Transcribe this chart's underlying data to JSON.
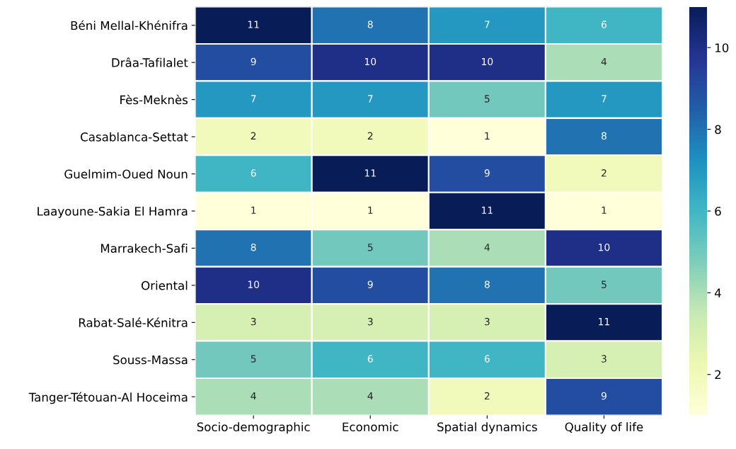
{
  "chart_data": {
    "type": "heatmap",
    "categories": [
      "Socio-demographic",
      "Economic",
      "Spatial dynamics",
      "Quality of life"
    ],
    "y_categories": [
      "Béni Mellal-Khénifra",
      "Drâa-Tafilalet",
      "Fès-Meknès",
      "Casablanca-Settat",
      "Guelmim-Oued Noun",
      "Laayoune-Sakia El Hamra",
      "Marrakech-Safi",
      "Oriental",
      "Rabat-Salé-Kénitra",
      "Souss-Massa",
      "Tanger-Tétouan-Al Hoceima"
    ],
    "cells": [
      [
        11,
        8,
        7,
        6
      ],
      [
        9,
        10,
        10,
        4
      ],
      [
        7,
        7,
        5,
        7
      ],
      [
        2,
        2,
        1,
        8
      ],
      [
        6,
        11,
        9,
        2
      ],
      [
        1,
        1,
        11,
        1
      ],
      [
        8,
        5,
        4,
        10
      ],
      [
        10,
        9,
        8,
        5
      ],
      [
        3,
        3,
        3,
        11
      ],
      [
        5,
        6,
        6,
        3
      ],
      [
        4,
        4,
        2,
        9
      ]
    ],
    "clim": [
      1,
      11
    ],
    "cticks": [
      2,
      4,
      6,
      8,
      10
    ],
    "data_labels": true
  }
}
